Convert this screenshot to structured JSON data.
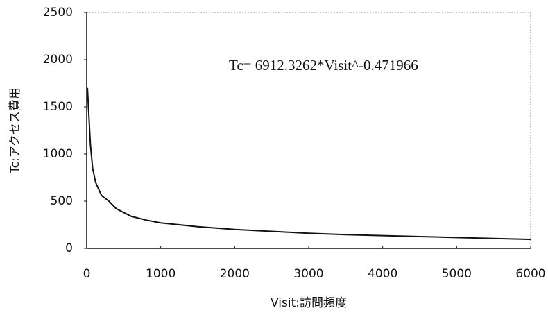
{
  "chart_data": {
    "type": "line",
    "annotation": "Tc= 6912.3262*Visit^-0.471966",
    "x_label": "Visit:訪問頻度",
    "y_label": "Tc:アクセス費用",
    "series": [
      {
        "color": "#111111",
        "x": [
          10,
          30,
          50,
          80,
          120,
          200,
          300,
          400,
          600,
          800,
          1000,
          1500,
          2000,
          2500,
          3000,
          3500,
          4000,
          4500,
          5000,
          5500,
          6000
        ],
        "values": [
          1700,
          1400,
          1100,
          850,
          700,
          560,
          500,
          420,
          340,
          300,
          270,
          230,
          200,
          180,
          160,
          145,
          135,
          125,
          115,
          105,
          95
        ]
      }
    ],
    "xlim": [
      0,
      6000
    ],
    "xticks": [
      0,
      1000,
      2000,
      3000,
      4000,
      5000,
      6000
    ],
    "ylim": [
      0,
      2500
    ],
    "yticks": [
      0,
      500,
      1000,
      1500,
      2000,
      2500
    ]
  }
}
